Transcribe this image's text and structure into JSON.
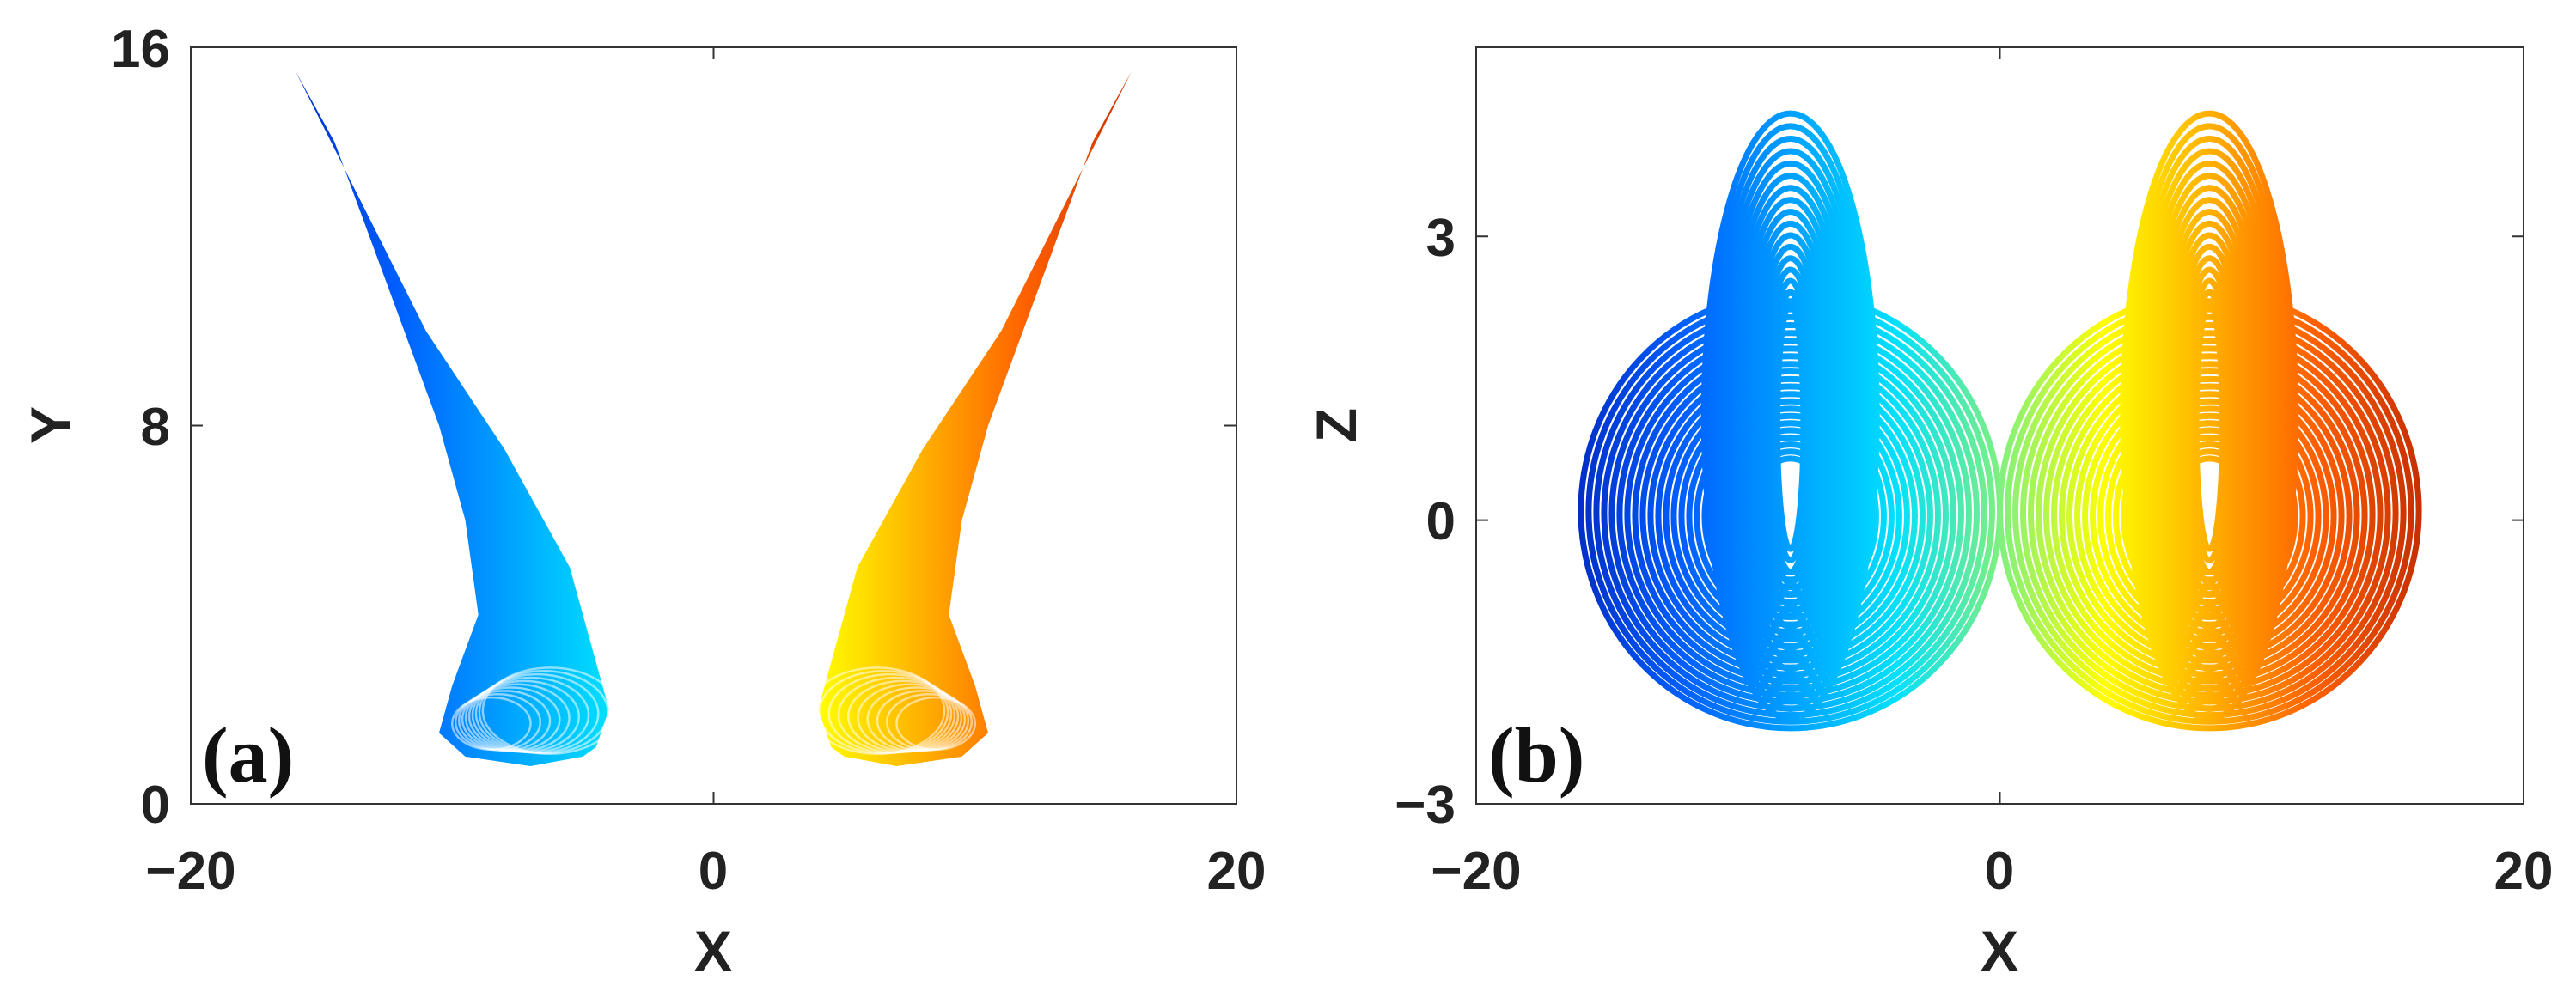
{
  "chart_data": [
    {
      "type": "scatter",
      "panel_label": "(a)",
      "xlabel": "X",
      "ylabel": "Y",
      "xlim": [
        -20,
        20
      ],
      "ylim": [
        0,
        16
      ],
      "xticks": [
        -20,
        0,
        20
      ],
      "yticks": [
        0,
        8,
        16
      ],
      "xtick_labels": [
        "−20",
        "0",
        "20"
      ],
      "ytick_labels": [
        "0",
        "8",
        "16"
      ],
      "colormap": [
        "#00008f",
        "#0060ff",
        "#00e0ff",
        "#ffff00",
        "#ff6000",
        "#8f0000"
      ],
      "series": [
        {
          "wing": "left",
          "outline_x": [
            -16.0,
            -11.0,
            -8.0,
            -5.5,
            -4.0,
            -4.5,
            -5.0,
            -7.0,
            -9.5,
            -10.5,
            -10.0,
            -9.0,
            -9.5,
            -10.5,
            -12.5,
            -14.5
          ],
          "outline_y": [
            15.5,
            10.0,
            7.5,
            5.0,
            2.0,
            1.2,
            1.0,
            0.8,
            1.0,
            1.5,
            2.5,
            4.0,
            6.0,
            8.0,
            11.0,
            14.0
          ]
        },
        {
          "wing": "right",
          "outline_x": [
            16.0,
            11.0,
            8.0,
            5.5,
            4.0,
            4.5,
            5.0,
            7.0,
            9.5,
            10.5,
            10.0,
            9.0,
            9.5,
            10.5,
            12.5,
            14.5
          ],
          "outline_y": [
            15.5,
            10.0,
            7.5,
            5.0,
            2.0,
            1.2,
            1.0,
            0.8,
            1.0,
            1.5,
            2.5,
            4.0,
            6.0,
            8.0,
            11.0,
            14.0
          ]
        }
      ]
    },
    {
      "type": "scatter",
      "panel_label": "(b)",
      "xlabel": "X",
      "ylabel": "Z",
      "xlim": [
        -20,
        20
      ],
      "ylim": [
        -3,
        5
      ],
      "xticks": [
        -20,
        0,
        20
      ],
      "yticks": [
        -3,
        0,
        3
      ],
      "xtick_labels": [
        "−20",
        "0",
        "20"
      ],
      "ytick_labels": [
        "−3",
        "0",
        "3"
      ],
      "colormap": [
        "#00008f",
        "#0060ff",
        "#00e0ff",
        "#ffff00",
        "#ff6000",
        "#8f0000"
      ],
      "series": [
        {
          "wing": "left",
          "large_loop": {
            "center": [
              -8.0,
              0.1
            ],
            "radius_x_range": [
              1.5,
              8.0
            ],
            "radius_z_range": [
              0.6,
              2.3
            ]
          },
          "tall_loop": {
            "center": [
              -8.0,
              1.1
            ],
            "radius_x_range": [
              0.5,
              3.3
            ],
            "radius_z_range": [
              1.3,
              3.2
            ]
          }
        },
        {
          "wing": "right",
          "large_loop": {
            "center": [
              8.0,
              0.1
            ],
            "radius_x_range": [
              1.5,
              8.0
            ],
            "radius_z_range": [
              0.6,
              2.3
            ]
          },
          "tall_loop": {
            "center": [
              8.0,
              1.1
            ],
            "radius_x_range": [
              0.5,
              3.3
            ],
            "radius_z_range": [
              1.3,
              3.2
            ]
          }
        }
      ]
    }
  ]
}
